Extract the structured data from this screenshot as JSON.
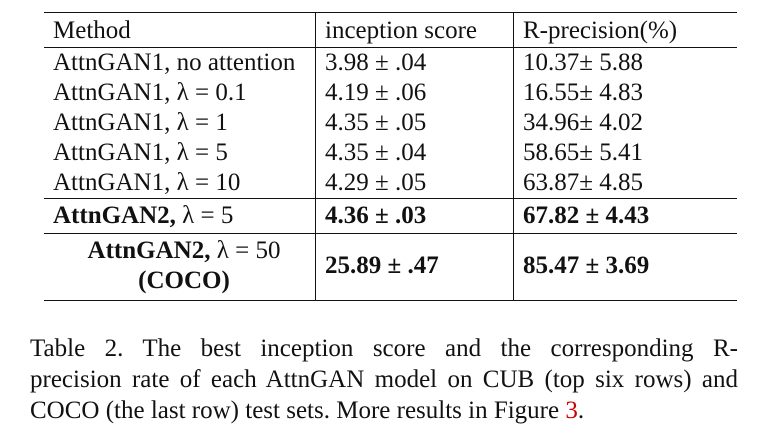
{
  "table": {
    "headers": [
      "Method",
      "inception score",
      "R-precision(%)"
    ],
    "rows": [
      {
        "method": "AttnGAN1, no attention",
        "is": "3.98 ± .04",
        "rp": "10.37± 5.88"
      },
      {
        "method": "AttnGAN1, λ = 0.1",
        "is": "4.19 ± .06",
        "rp": "16.55± 4.83"
      },
      {
        "method": "AttnGAN1, λ = 1",
        "is": "4.35 ± .05",
        "rp": "34.96± 4.02"
      },
      {
        "method": "AttnGAN1, λ = 5",
        "is": "4.35 ± .04",
        "rp": "58.65± 5.41"
      },
      {
        "method": "AttnGAN1, λ = 10",
        "is": "4.29 ± .05",
        "rp": "63.87± 4.85"
      }
    ],
    "best_cub": {
      "method_bold": "AttnGAN2,",
      "method_lambda": " λ = 5",
      "is": "4.36 ± .03",
      "rp": "67.82 ± 4.43"
    },
    "coco": {
      "method_bold": "AttnGAN2,",
      "method_lambda": " λ = 50",
      "method_line2": "(COCO)",
      "is": "25.89 ± .47",
      "rp": "85.47 ± 3.69"
    }
  },
  "caption": {
    "line1": "Table 2. The best inception score and the corresponding R-",
    "line2": "precision rate of each AttnGAN model on CUB (top six rows) and",
    "line3_pre": "COCO (the last row) test sets. More results in Figure ",
    "line3_link": "3",
    "line3_post": "."
  }
}
